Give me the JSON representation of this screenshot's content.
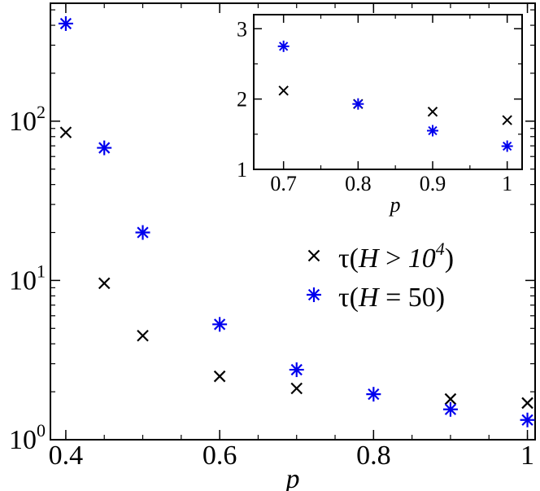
{
  "chart_data": [
    {
      "type": "scatter",
      "xlabel": "p",
      "ylabel": "",
      "xlim": [
        0.38,
        1.01
      ],
      "ylim": [
        1,
        550
      ],
      "yscale": "log",
      "xticks": [
        {
          "value": 0.4,
          "label": "0.4"
        },
        {
          "value": 0.6,
          "label": "0.6"
        },
        {
          "value": 0.8,
          "label": "0.8"
        },
        {
          "value": 1.0,
          "label": "1"
        }
      ],
      "yticks": [
        {
          "value": 1,
          "base": "10",
          "exp": "0"
        },
        {
          "value": 10,
          "base": "10",
          "exp": "1"
        },
        {
          "value": 100,
          "base": "10",
          "exp": "2"
        }
      ],
      "legend_position": "center-right",
      "series": [
        {
          "name_parts": {
            "tau": "τ(",
            "var": "H",
            "op": " > ",
            "base": "10",
            "exp": "4",
            "close": ")"
          },
          "marker": "x",
          "color": "#000000",
          "points": [
            [
              0.4,
              85
            ],
            [
              0.45,
              9.6
            ],
            [
              0.5,
              4.5
            ],
            [
              0.6,
              2.5
            ],
            [
              0.7,
              2.1
            ],
            [
              0.9,
              1.8
            ],
            [
              1.0,
              1.7
            ]
          ]
        },
        {
          "name_parts": {
            "tau": "τ(",
            "var": "H",
            "op": " = 50)"
          },
          "marker": "asterisk",
          "color": "#0000ee",
          "points": [
            [
              0.4,
              410
            ],
            [
              0.45,
              68
            ],
            [
              0.5,
              20
            ],
            [
              0.6,
              5.3
            ],
            [
              0.7,
              2.75
            ],
            [
              0.8,
              1.93
            ],
            [
              0.9,
              1.55
            ],
            [
              1.0,
              1.33
            ]
          ]
        }
      ]
    },
    {
      "type": "scatter",
      "inset": true,
      "xlabel": "p",
      "xlim": [
        0.66,
        1.02
      ],
      "ylim": [
        1,
        3.2
      ],
      "xticks": [
        {
          "value": 0.7,
          "label": "0.7"
        },
        {
          "value": 0.8,
          "label": "0.8"
        },
        {
          "value": 0.9,
          "label": "0.9"
        },
        {
          "value": 1.0,
          "label": "1"
        }
      ],
      "yticks": [
        {
          "value": 1,
          "label": "1"
        },
        {
          "value": 2,
          "label": "2"
        },
        {
          "value": 3,
          "label": "3"
        }
      ],
      "series": [
        {
          "marker": "x",
          "color": "#000000",
          "points": [
            [
              0.7,
              2.12
            ],
            [
              0.8,
              1.93
            ],
            [
              0.9,
              1.82
            ],
            [
              1.0,
              1.7
            ]
          ]
        },
        {
          "marker": "asterisk",
          "color": "#0000ee",
          "points": [
            [
              0.7,
              2.75
            ],
            [
              0.8,
              1.93
            ],
            [
              0.9,
              1.55
            ],
            [
              1.0,
              1.33
            ]
          ]
        }
      ]
    }
  ]
}
